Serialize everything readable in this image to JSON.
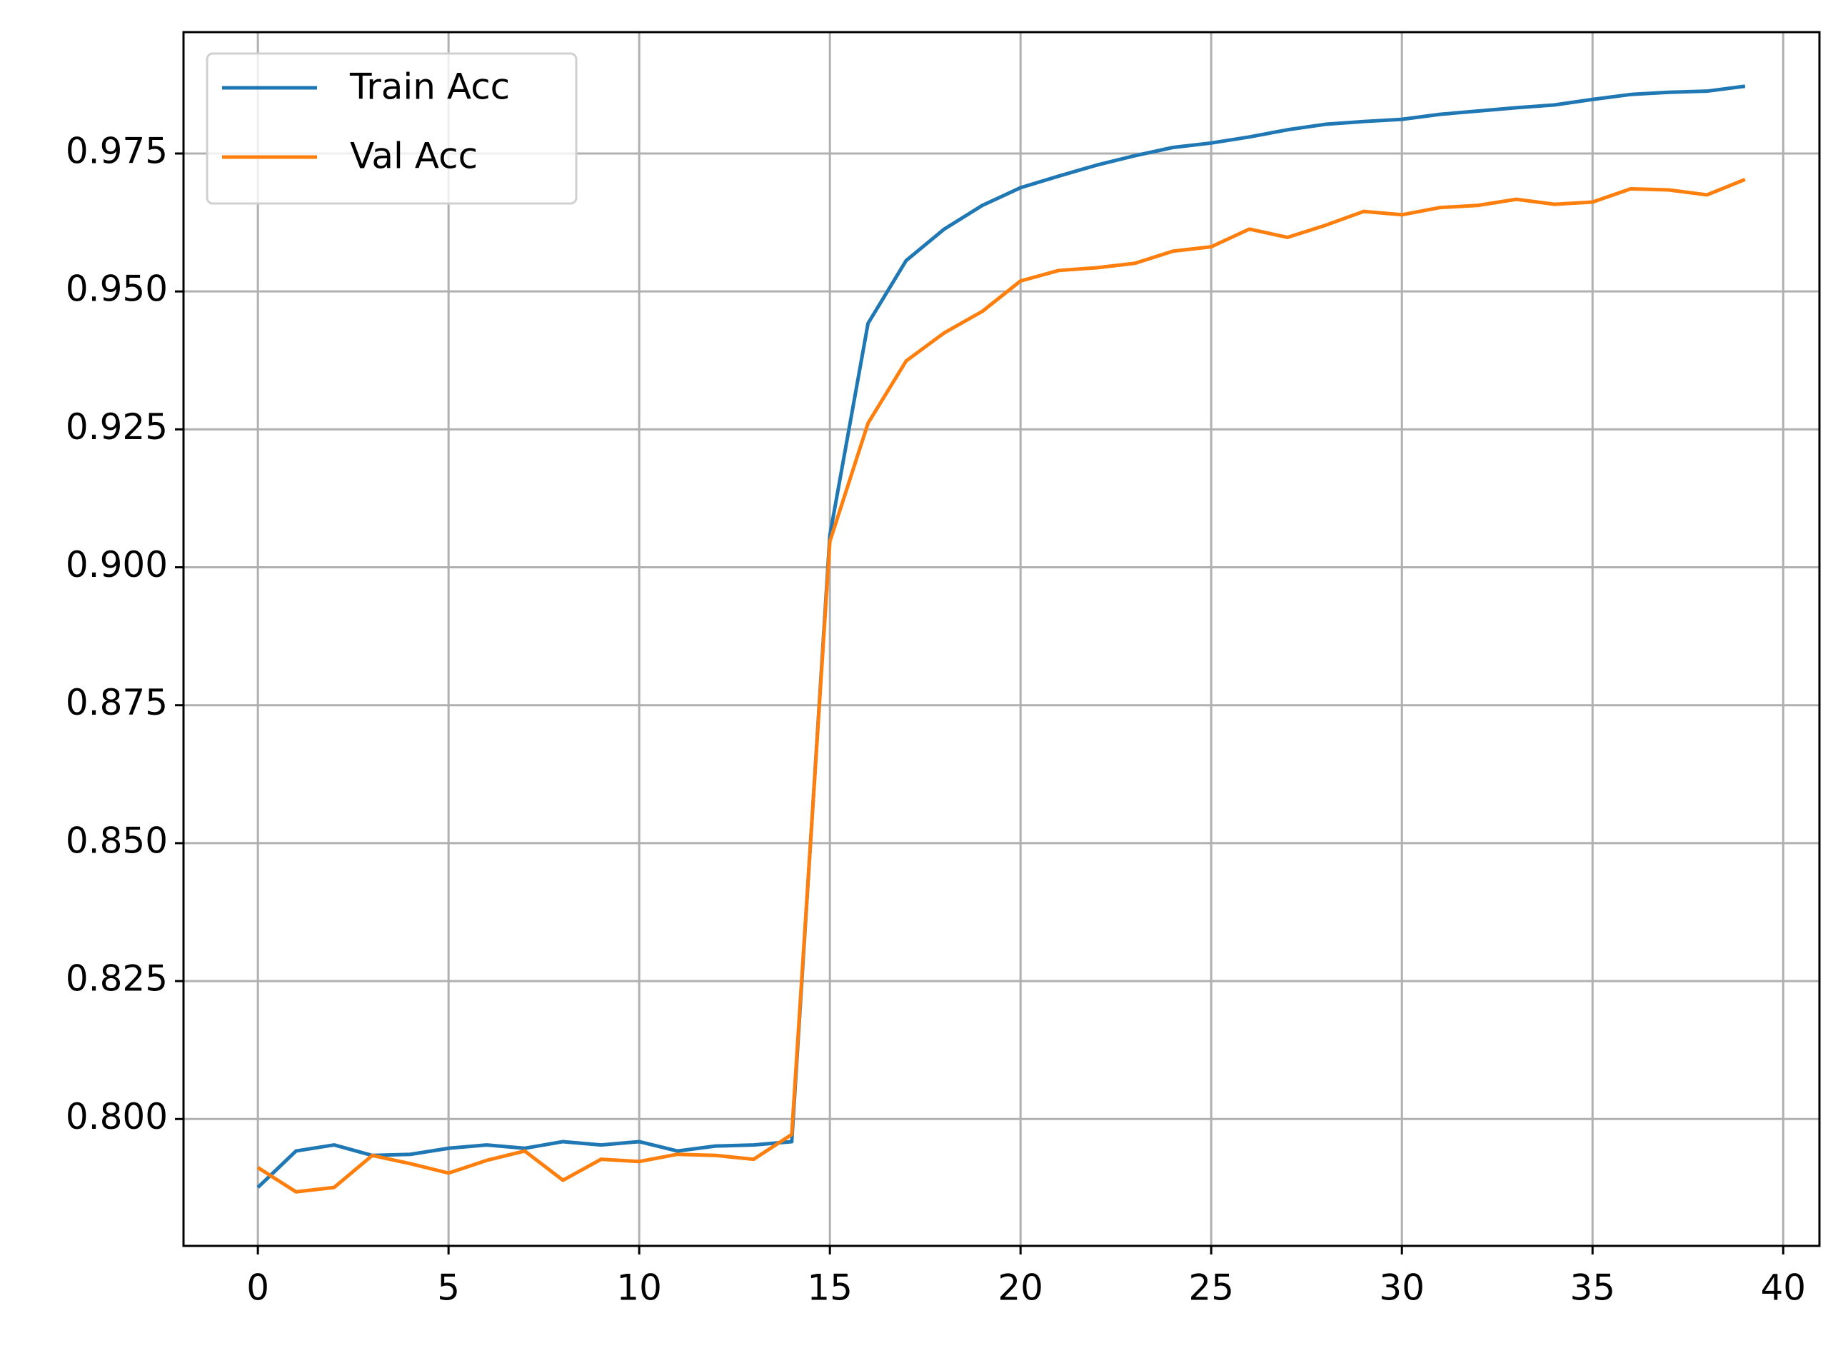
{
  "chart_data": {
    "type": "line",
    "x": [
      0,
      1,
      2,
      3,
      4,
      5,
      6,
      7,
      8,
      9,
      10,
      11,
      12,
      13,
      14,
      15,
      16,
      17,
      18,
      19,
      20,
      21,
      22,
      23,
      24,
      25,
      26,
      27,
      28,
      29,
      30,
      31,
      32,
      33,
      34,
      35,
      36,
      37,
      38,
      39
    ],
    "series": [
      {
        "name": "Train Acc",
        "color": "#1f77b4",
        "values": [
          0.7876,
          0.7942,
          0.7953,
          0.7934,
          0.7936,
          0.7947,
          0.7953,
          0.7947,
          0.7959,
          0.7953,
          0.7959,
          0.7942,
          0.7951,
          0.7953,
          0.7959,
          0.9058,
          0.9442,
          0.9556,
          0.9613,
          0.9656,
          0.9688,
          0.9709,
          0.9729,
          0.9746,
          0.9761,
          0.9769,
          0.978,
          0.9793,
          0.9803,
          0.9808,
          0.9812,
          0.9821,
          0.9827,
          0.9833,
          0.9838,
          0.9848,
          0.9857,
          0.9861,
          0.9863,
          0.9872
        ]
      },
      {
        "name": "Val Acc",
        "color": "#ff7f0e",
        "values": [
          0.7912,
          0.7868,
          0.7876,
          0.7934,
          0.7919,
          0.7902,
          0.7925,
          0.7942,
          0.7889,
          0.7927,
          0.7923,
          0.7936,
          0.7934,
          0.7927,
          0.7972,
          0.9047,
          0.9261,
          0.9374,
          0.9425,
          0.9464,
          0.9519,
          0.9538,
          0.9543,
          0.9551,
          0.9573,
          0.9581,
          0.9613,
          0.9598,
          0.962,
          0.9645,
          0.9639,
          0.9652,
          0.9656,
          0.9667,
          0.9658,
          0.9662,
          0.9686,
          0.9684,
          0.9675,
          0.9703
        ]
      }
    ],
    "xlim": [
      -1.95,
      40.95
    ],
    "xticks": [
      0,
      5,
      10,
      15,
      20,
      25,
      30,
      35,
      40
    ],
    "ylim": [
      0.777,
      0.997
    ],
    "yticks": [
      {
        "value": 0.8,
        "label": "0.800"
      },
      0.825,
      {
        "value": 0.85,
        "label": "0.850"
      },
      0.875,
      {
        "value": 0.9,
        "label": "0.900"
      },
      0.925,
      {
        "value": 0.95,
        "label": "0.950"
      },
      0.975
    ],
    "grid": true,
    "legend": "upper left"
  }
}
